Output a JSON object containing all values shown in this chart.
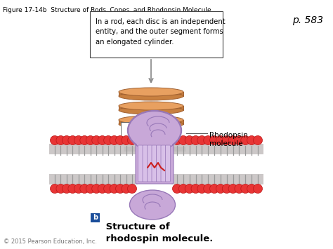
{
  "bg_color": "#ffffff",
  "title": "Figure 17-14b  Structure of Rods, Cones, and Rhodopsin Molecule",
  "page_ref": "p. 583",
  "callout_text": "In a rod, each disc is an independent\nentity, and the outer segment forms\nan elongated cylinder.",
  "label_rhodopsin": "Rhodopsin\nmolecule",
  "caption_b": "b",
  "caption_text": " Structure of\n rhodospin molecule.",
  "copyright": "© 2015 Pearson Education, Inc.",
  "title_fontsize": 6.5,
  "caption_fontsize": 9.5,
  "page_fontsize": 10,
  "disc_color_top": "#E8A060",
  "disc_color_side": "#C88040",
  "disc_color_rim": "#A06030",
  "rhodopsin_fill": "#C8A8D8",
  "rhodopsin_edge": "#9878B8",
  "head_color": "#E83535",
  "head_edge": "#BB1515",
  "tail_color": "#999999",
  "mem_band_color": "#C0BBBB"
}
